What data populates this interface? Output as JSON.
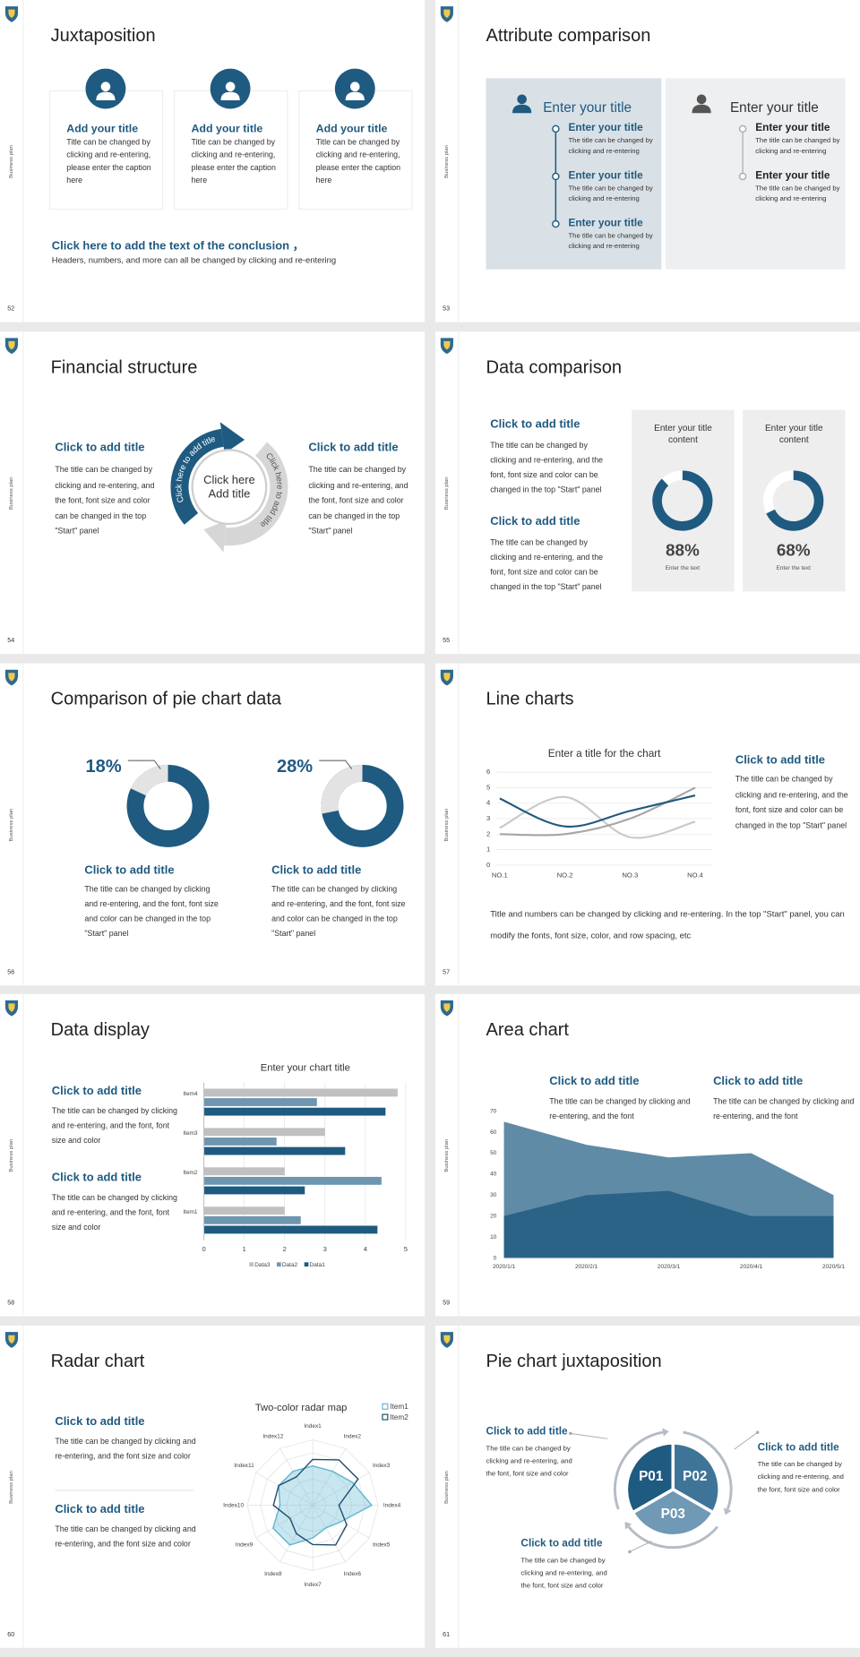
{
  "slides": [
    {
      "number": 52,
      "side_label": "Business plan",
      "title": "Juxtaposition",
      "cards": [
        {
          "title": "Add your title",
          "text": "Title can be changed by clicking and re-entering, please enter the caption here"
        },
        {
          "title": "Add your title",
          "text": "Title can be changed by clicking and re-entering, please enter the caption here"
        },
        {
          "title": "Add your title",
          "text": "Title can be changed by clicking and re-entering, please enter the caption here"
        }
      ],
      "conclusion": {
        "title": "Click here to add the text of the conclusion ，",
        "text": "Headers, numbers, and more can all be changed by clicking and re-entering"
      }
    },
    {
      "number": 53,
      "side_label": "Business plan",
      "title": "Attribute comparison",
      "panels": [
        {
          "title": "Enter your title",
          "items": [
            {
              "title": "Enter your title",
              "text": "The title can be changed by clicking and re-entering"
            },
            {
              "title": "Enter your title",
              "text": "The title can be changed by clicking and re-entering"
            },
            {
              "title": "Enter your title",
              "text": "The title can be changed by clicking and re-entering"
            }
          ]
        },
        {
          "title": "Enter your title",
          "items": [
            {
              "title": "Enter your title",
              "text": "The title can be changed by clicking and re-entering"
            },
            {
              "title": "Enter your title",
              "text": "The title can be changed by clicking and re-entering"
            }
          ]
        }
      ]
    },
    {
      "number": 54,
      "side_label": "Business plan",
      "title": "Financial structure",
      "left": {
        "title": "Click to add title",
        "text": "The title can be changed by clicking and re-entering, and the font, font size and color can be changed in the top \"Start\" panel"
      },
      "right": {
        "title": "Click to add title",
        "text": "The title can be changed by clicking and re-entering, and the font, font size and color can be changed in the top \"Start\" panel"
      },
      "center_text": [
        "Click here",
        "Add title"
      ],
      "arc_labels": [
        "Click here to add title",
        "Click here to add title"
      ]
    },
    {
      "number": 55,
      "side_label": "Business plan",
      "title": "Data comparison",
      "blocks": [
        {
          "title": "Click to add title",
          "text": "The title can be changed by clicking and re-entering, and the font, font size and color can be changed in the top \"Start\" panel"
        },
        {
          "title": "Click to add title",
          "text": "The title can be changed by clicking and re-entering, and the font, font size and color can be changed in the top \"Start\" panel"
        }
      ],
      "donuts": [
        {
          "type": "donut",
          "title": "Enter your title content",
          "values": [
            88
          ],
          "value_labels": [
            "88%"
          ],
          "caption": "Enter the text",
          "color": "#1f5a80"
        },
        {
          "type": "donut",
          "title": "Enter your title content",
          "values": [
            68
          ],
          "value_labels": [
            "68%"
          ],
          "caption": "Enter the text",
          "color": "#1f5a80"
        }
      ]
    },
    {
      "number": 56,
      "side_label": "Business plan",
      "title": "Comparison of pie chart data",
      "donuts": [
        {
          "type": "donut",
          "values": [
            18
          ],
          "value_labels": [
            "18%"
          ],
          "color": "#e3e3e3",
          "title": "Click to add title",
          "text": "The title can be changed by clicking and re-entering, and the font, font size and color can be changed in the top \"Start\" panel"
        },
        {
          "type": "donut",
          "values": [
            28
          ],
          "value_labels": [
            "28%"
          ],
          "color": "#e3e3e3",
          "title": "Click to add title",
          "text": "The title can be changed by clicking and re-entering, and the font, font size and color can be changed in the top \"Start\" panel"
        }
      ]
    },
    {
      "number": 57,
      "side_label": "Business plan",
      "title": "Line charts",
      "chart": {
        "type": "line",
        "title": "Enter a title for the chart",
        "categories": [
          "NO.1",
          "NO.2",
          "NO.3",
          "NO.4"
        ],
        "series": [
          {
            "color": "#c9c9c9",
            "values": [
              2.4,
              4.4,
              1.8,
              2.8
            ]
          },
          {
            "color": "#a6a6a6",
            "values": [
              2.0,
              2.0,
              3.0,
              5.0
            ]
          },
          {
            "color": "#1f5a80",
            "values": [
              4.3,
              2.5,
              3.5,
              4.5
            ]
          }
        ],
        "ylim": [
          0,
          6
        ],
        "yticks": [
          0,
          1,
          2,
          3,
          4,
          5,
          6
        ],
        "grid": true
      },
      "side": {
        "title": "Click to add title",
        "text": "The title can be changed by clicking and re-entering, and the font, font size and color can be changed in the top \"Start\" panel"
      },
      "note": "Title and numbers can be changed by clicking and re-entering. In the top \"Start\" panel, you can modify the fonts, font size, color, and row spacing, etc"
    },
    {
      "number": 58,
      "side_label": "Business plan",
      "title": "Data display",
      "blocks": [
        {
          "title": "Click to add title",
          "text": "The title can be changed by clicking and re-entering, and the font, font size and color"
        },
        {
          "title": "Click to add title",
          "text": "The title can be changed by clicking and re-entering, and the font, font size and color"
        }
      ],
      "chart": {
        "type": "barh",
        "title": "Enter your chart title",
        "categories": [
          "Item1",
          "Item2",
          "Item3",
          "Item4"
        ],
        "series": [
          {
            "name": "Data3",
            "color": "#c0c0c0",
            "values": [
              2.0,
              2.0,
              3.0,
              4.8
            ]
          },
          {
            "name": "Data2",
            "color": "#6e96b0",
            "values": [
              2.4,
              4.4,
              1.8,
              2.8
            ]
          },
          {
            "name": "Data1",
            "color": "#1f5a80",
            "values": [
              4.3,
              2.5,
              3.5,
              4.5
            ]
          }
        ],
        "xlim": [
          0,
          5
        ],
        "xticks": [
          0,
          1,
          2,
          3,
          4,
          5
        ],
        "grid": true,
        "legend": "bottom"
      }
    },
    {
      "number": 59,
      "side_label": "Business plan",
      "title": "Area chart",
      "blocks": [
        {
          "title": "Click to add title",
          "text": "The title can be changed by clicking and re-entering, and the font"
        },
        {
          "title": "Click to add title",
          "text": "The title can be changed by clicking and re-entering, and the font"
        }
      ],
      "chart": {
        "type": "area",
        "x": [
          "2020/1/1",
          "2020/2/1",
          "2020/3/1",
          "2020/4/1",
          "2020/5/1"
        ],
        "series": [
          {
            "color": "#5f8ba6",
            "values": [
              65,
              54,
              48,
              50,
              30
            ]
          },
          {
            "color": "#2a6386",
            "values": [
              20,
              30,
              32,
              20,
              20
            ]
          }
        ],
        "ylim": [
          0,
          70
        ],
        "yticks": [
          0,
          10,
          20,
          30,
          40,
          50,
          60,
          70
        ]
      }
    },
    {
      "number": 60,
      "side_label": "Business plan",
      "title": "Radar chart",
      "blocks": [
        {
          "title": "Click to add title",
          "text": "The title can be changed by clicking and re-entering, and the font size and color"
        },
        {
          "title": "Click to add title",
          "text": "The title can be changed by clicking and re-entering, and the font size and color"
        }
      ],
      "chart": {
        "type": "radar",
        "title": "Two-color radar map",
        "categories": [
          "Index1",
          "Index2",
          "Index3",
          "Index4",
          "Index5",
          "Index6",
          "Index7",
          "Index8",
          "Index9",
          "Index10",
          "Index11",
          "Index12"
        ],
        "series": [
          {
            "name": "Item1",
            "color": "#5fb6d2",
            "values": [
              3,
              3,
              3.5,
              4.5,
              2.5,
              2,
              2.5,
              3.5,
              3.5,
              2.5,
              3,
              3
            ]
          },
          {
            "name": "Item2",
            "color": "#1f4e6e",
            "values": [
              3.5,
              4,
              4,
              2,
              3,
              3.5,
              3,
              2.5,
              2,
              3,
              3,
              2.5
            ]
          }
        ],
        "rlim": [
          0,
          5
        ],
        "legend": "top-right"
      }
    },
    {
      "number": 61,
      "side_label": "Business plan",
      "title": "Pie chart juxtaposition",
      "chart": {
        "type": "pie",
        "categories": [
          "P01",
          "P02",
          "P03"
        ],
        "values": [
          33.3,
          33.3,
          33.3
        ],
        "colors": [
          "#1f5a80",
          "#3f7499",
          "#6f99b5"
        ]
      },
      "blocks": [
        {
          "title": "Click to add title",
          "text": "The title can be changed by clicking and re-entering, and the font, font size and color"
        },
        {
          "title": "Click to add title",
          "text": "The title can be changed by clicking and re-entering, and the font, font size and color"
        },
        {
          "title": "Click to add title",
          "text": "The title can be changed by clicking and re-entering, and the font, font size and color"
        }
      ]
    }
  ]
}
